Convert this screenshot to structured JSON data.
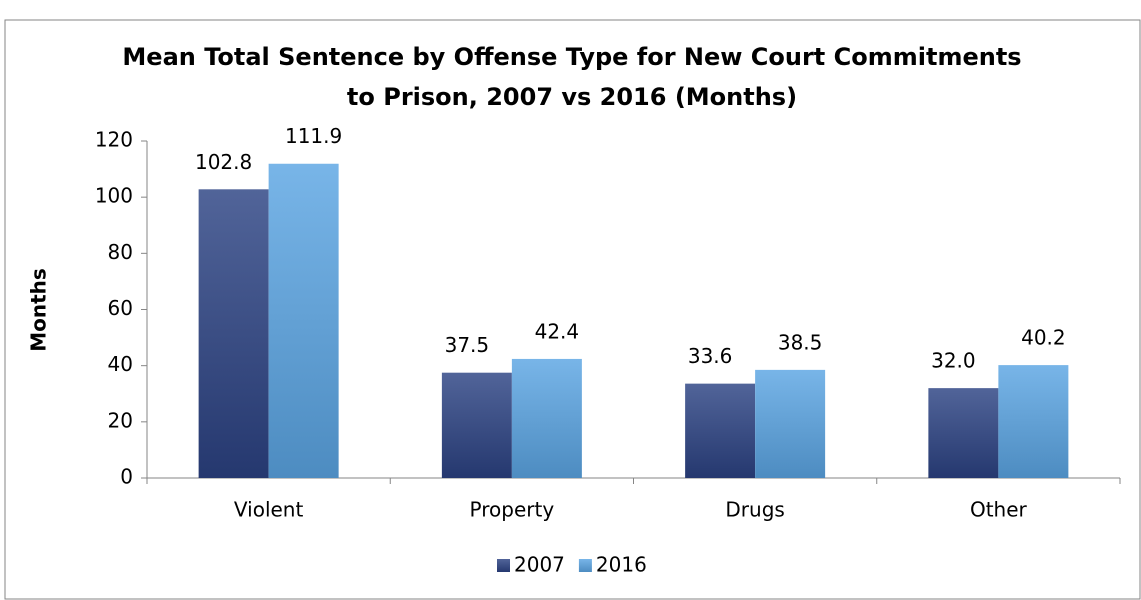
{
  "chart_data": {
    "type": "bar",
    "title": [
      "Mean Total Sentence by Offense Type for New Court Commitments",
      "to Prison, 2007 vs 2016 (Months)"
    ],
    "y_label": "Months",
    "categories": [
      "Violent",
      "Property",
      "Drugs",
      "Other"
    ],
    "series": [
      {
        "name": "2007",
        "color": "#2b4283",
        "values": [
          102.8,
          37.5,
          33.6,
          32.0
        ],
        "value_labels": [
          "102.8",
          "37.5",
          "33.6",
          "32.0"
        ]
      },
      {
        "name": "2016",
        "color": "#5aa5e3",
        "values": [
          111.9,
          42.4,
          38.5,
          40.2
        ],
        "value_labels": [
          "111.9",
          "42.4",
          "38.5",
          "40.2"
        ]
      }
    ],
    "ylim": [
      0,
      120
    ],
    "yticks": [
      0,
      20,
      40,
      60,
      80,
      100,
      120
    ],
    "grid": false,
    "legend": "bottom"
  }
}
